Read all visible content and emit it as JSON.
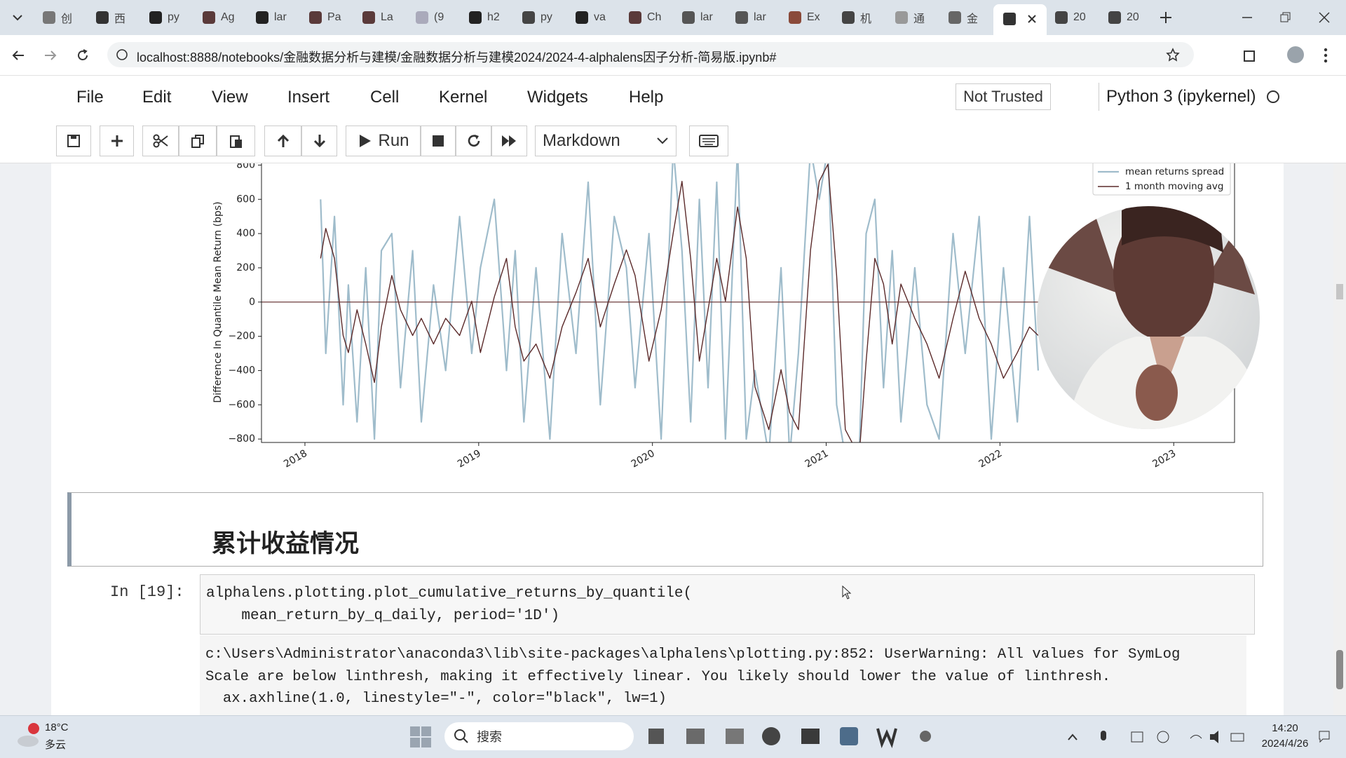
{
  "browser": {
    "tabs": [
      "创",
      "西",
      "py",
      "Ag",
      "lar",
      "Pa",
      "La",
      "(9",
      "h2",
      "py",
      "va",
      "Ch",
      "lar",
      "lar",
      "Ex",
      "机",
      "通",
      "金",
      "20",
      "20"
    ],
    "url": "localhost:8888/notebooks/金融数据分析与建模/金融数据分析与建模2024/2024-4-alphalens因子分析-简易版.ipynb#"
  },
  "menu": [
    "File",
    "Edit",
    "View",
    "Insert",
    "Cell",
    "Kernel",
    "Widgets",
    "Help"
  ],
  "trust": "Not Trusted",
  "kernel": "Python 3 (ipykernel)",
  "toolbar": {
    "run": "Run",
    "cell_type": "Markdown"
  },
  "chart_data": {
    "type": "line",
    "y_label": "Difference In Quantile Mean Return (bps)",
    "x": [
      2018.09,
      2018.12,
      2018.17,
      2018.22,
      2018.25,
      2018.3,
      2018.35,
      2018.4,
      2018.44,
      2018.5,
      2018.55,
      2018.62,
      2018.67,
      2018.74,
      2018.81,
      2018.89,
      2018.96,
      2019.01,
      2019.09,
      2019.16,
      2019.21,
      2019.26,
      2019.33,
      2019.41,
      2019.48,
      2019.56,
      2019.63,
      2019.7,
      2019.78,
      2019.85,
      2019.9,
      2019.98,
      2020.05,
      2020.12,
      2020.17,
      2020.22,
      2020.27,
      2020.32,
      2020.37,
      2020.42,
      2020.49,
      2020.54,
      2020.59,
      2020.67,
      2020.74,
      2020.79,
      2020.84,
      2020.91,
      2020.96,
      2021.01,
      2021.06,
      2021.11,
      2021.19,
      2021.23,
      2021.28,
      2021.33,
      2021.38,
      2021.43,
      2021.51,
      2021.58,
      2021.65,
      2021.73,
      2021.8,
      2021.88,
      2021.95,
      2022.02,
      2022.1,
      2022.17,
      2022.22
    ],
    "series": [
      {
        "name": "mean returns spread",
        "color": "#9fbccb",
        "values": [
          600,
          -300,
          500,
          -600,
          100,
          -700,
          200,
          -800,
          300,
          400,
          -500,
          300,
          -700,
          100,
          -400,
          500,
          -300,
          200,
          600,
          -400,
          300,
          -700,
          200,
          -800,
          400,
          -300,
          700,
          -600,
          500,
          200,
          -500,
          400,
          -800,
          900,
          300,
          -700,
          600,
          -500,
          700,
          -800,
          900,
          -800,
          -400,
          -900,
          200,
          -900,
          -300,
          900,
          600,
          900,
          -600,
          -900,
          -900,
          400,
          600,
          -500,
          300,
          -700,
          200,
          -600,
          -800,
          400,
          -300,
          500,
          -800,
          200,
          -700,
          500,
          -400
        ]
      },
      {
        "name": "1 month moving avg",
        "color": "#5b2a2a",
        "values": [
          255,
          430,
          255,
          -195,
          -295,
          -45,
          -245,
          -470,
          -145,
          155,
          -45,
          -195,
          -95,
          -245,
          -95,
          -195,
          5,
          -295,
          30,
          255,
          -145,
          -345,
          -245,
          -445,
          -145,
          55,
          255,
          -145,
          105,
          305,
          155,
          -345,
          -45,
          405,
          705,
          255,
          -345,
          -45,
          255,
          5,
          555,
          255,
          -495,
          -745,
          -395,
          -645,
          -745,
          305,
          705,
          805,
          155,
          -745,
          -900,
          -345,
          255,
          105,
          -245,
          105,
          -95,
          -245,
          -445,
          -95,
          180,
          -95,
          -245,
          -445,
          -295,
          -145,
          -195
        ]
      }
    ],
    "hline": {
      "value": 0,
      "color": "#6e3b3b"
    },
    "xlim": [
      2017.75,
      2023.35
    ],
    "xticks": [
      2018,
      2019,
      2020,
      2021,
      2022,
      2023
    ],
    "ylim": [
      -820,
      900
    ],
    "yticks": [
      {
        "value": -800,
        "label": "−800"
      },
      {
        "value": -600,
        "label": "−600"
      },
      {
        "value": -400,
        "label": "−400"
      },
      {
        "value": -200,
        "label": "−200"
      },
      0,
      200,
      400,
      600,
      800
    ],
    "legend": "upper right"
  },
  "cells": {
    "heading": "累计收益情况",
    "prompt": "In [19]:",
    "code": [
      "alphalens.plotting.plot_cumulative_returns_by_quantile(",
      "    mean_return_by_q_daily, period='1D')"
    ],
    "output": [
      "c:\\Users\\Administrator\\anaconda3\\lib\\site-packages\\alphalens\\plotting.py:852: UserWarning: All values for SymLog",
      "Scale are below linthresh, making it effectively linear. You likely should lower the value of linthresh.",
      "  ax.axhline(1.0, linestyle=\"-\", color=\"black\", lw=1)"
    ]
  },
  "taskbar": {
    "temperature": "18°C",
    "weather": "多云",
    "search": "搜索",
    "time": "14:20",
    "date": "2024/4/26"
  }
}
